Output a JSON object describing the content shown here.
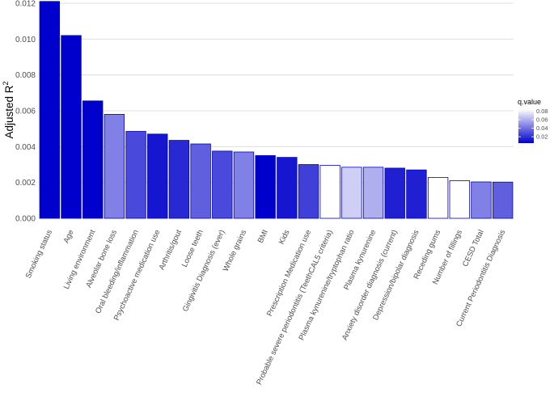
{
  "chart_data": {
    "type": "bar",
    "title": "",
    "xlabel": "",
    "ylabel": "Adjusted R",
    "ylabel_superscript": "2",
    "ylim": [
      0,
      0.012
    ],
    "yticks": [
      "0.000",
      "0.002",
      "0.004",
      "0.006",
      "0.008",
      "0.010",
      "0.012"
    ],
    "grid": true,
    "categories": [
      "Smoking status",
      "Age",
      "Living environment",
      "Alveolar bone loss",
      "Oral bleeding/inflammation",
      "Psychoactive medication use",
      "Arthritis/gout",
      "Loose teeth",
      "Gingivitis Diagnosis (ever)",
      "Whole grains",
      "BMI",
      "Kids",
      "Prescription Medication use",
      "Probable severe periodontitis (TeethCAL5 criteria)",
      "Plasma kynurenine/tryptophan ratio",
      "Plasma kynurenine",
      "Anxiety disorder diagnosis (current)",
      "Depression/bipolar diagnosis",
      "Receding gums",
      "Number of fillings",
      "CESD Total",
      "Current Periodontitis Diagnosis"
    ],
    "values": [
      0.0121,
      0.0102,
      0.00655,
      0.0058,
      0.00485,
      0.0047,
      0.00435,
      0.00415,
      0.00375,
      0.0037,
      0.0035,
      0.0034,
      0.003,
      0.00295,
      0.00285,
      0.00285,
      0.0028,
      0.0027,
      0.00228,
      0.0021,
      0.00203,
      0.00202
    ],
    "q_values": [
      0.005,
      0.005,
      0.005,
      0.045,
      0.028,
      0.012,
      0.018,
      0.035,
      0.028,
      0.045,
      0.005,
      0.012,
      0.025,
      0.085,
      0.07,
      0.06,
      0.015,
      0.015,
      0.085,
      0.085,
      0.045,
      0.035
    ],
    "legend": {
      "title": "q.value",
      "placement": "right",
      "ticks": [
        "0.08",
        "0.06",
        "0.04",
        "0.02"
      ],
      "tick_values": [
        0.08,
        0.06,
        0.04,
        0.02
      ],
      "range": [
        0.005,
        0.085
      ],
      "color_low": "#0000cc",
      "color_high": "#ffffff"
    },
    "grid_color": "#d9d9d9",
    "bar_outline": "#0000cc"
  }
}
